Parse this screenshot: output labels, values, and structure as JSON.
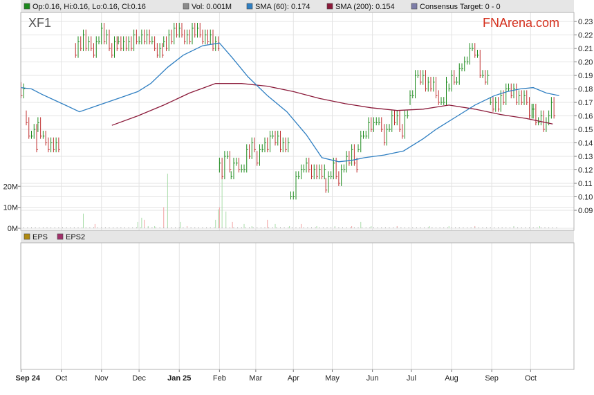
{
  "chart_data": {
    "type": "bar",
    "ticker": "XF1",
    "brand": "FNArena.com",
    "legend_top": [
      {
        "key": "ohlc",
        "text": "Op:0.16, Hi:0.16, Lo:0.16, Cl:0.16",
        "color": "#1d8a1d"
      },
      {
        "key": "vol",
        "text": "Vol: 0.001M",
        "color": "#8c8c8c"
      },
      {
        "key": "sma60",
        "text": "SMA (60): 0.174",
        "color": "#2f7fc2"
      },
      {
        "key": "sma200",
        "text": "SMA (200): 0.154",
        "color": "#8b1a3a"
      },
      {
        "key": "target",
        "text": "Consensus Target: 0 - 0",
        "color": "#7d7da8"
      }
    ],
    "legend_bottom": [
      {
        "key": "eps",
        "text": "EPS",
        "color": "#b08a10"
      },
      {
        "key": "eps2",
        "text": "EPS2",
        "color": "#a0306a"
      }
    ],
    "y_ticks": [
      0.23,
      0.22,
      0.21,
      0.2,
      0.19,
      0.18,
      0.17,
      0.16,
      0.15,
      0.14,
      0.13,
      0.12,
      0.11,
      0.1,
      0.09
    ],
    "ylim": [
      0.09,
      0.23
    ],
    "vol_ticks": [
      "20M",
      "10M",
      "0M"
    ],
    "vol_tick_values": [
      20,
      10,
      0
    ],
    "vol_max": 28,
    "x_ticks": [
      "Sep 24",
      "Oct",
      "Nov",
      "Dec",
      "Jan 25",
      "Feb",
      "Mar",
      "Apr",
      "May",
      "Jun",
      "Jul",
      "Aug",
      "Sep",
      "Oct"
    ],
    "x_tick_days": [
      0,
      31,
      62,
      91,
      122,
      153,
      181,
      210,
      240,
      271,
      301,
      332,
      363,
      393
    ],
    "x_days_total": 420,
    "bold_ticks": [
      "Sep 24",
      "Jan 25"
    ],
    "price_segments": [
      {
        "start": 0,
        "end": 4,
        "prices": [
          0.181,
          0.186,
          0.17,
          0.16
        ]
      },
      {
        "start": 4,
        "end": 13,
        "prices": [
          0.16,
          0.14,
          0.15,
          0.14,
          0.13
        ]
      },
      {
        "start": 13,
        "end": 30,
        "prices": [
          0.15,
          0.14,
          0.14,
          0.135,
          0.135
        ]
      },
      {
        "start": 42,
        "end": 75,
        "prices": [
          0.21,
          0.215,
          0.21,
          0.22,
          0.21,
          0.212
        ]
      },
      {
        "start": 75,
        "end": 110,
        "prices": [
          0.215,
          0.21,
          0.22,
          0.212,
          0.21
        ]
      },
      {
        "start": 110,
        "end": 153,
        "prices": [
          0.213,
          0.22,
          0.218,
          0.22,
          0.22,
          0.215,
          0.21
        ]
      },
      {
        "start": 153,
        "end": 162,
        "prices": [
          0.12,
          0.118,
          0.125,
          0.13,
          0.12
        ]
      },
      {
        "start": 162,
        "end": 182,
        "prices": [
          0.115,
          0.125,
          0.12,
          0.13,
          0.135,
          0.13
        ]
      },
      {
        "start": 182,
        "end": 208,
        "prices": [
          0.13,
          0.14,
          0.135,
          0.145,
          0.14,
          0.135,
          0.132
        ]
      },
      {
        "start": 208,
        "end": 235,
        "prices": [
          0.1,
          0.115,
          0.12,
          0.118,
          0.12,
          0.112
        ]
      },
      {
        "start": 235,
        "end": 260,
        "prices": [
          0.11,
          0.12,
          0.115,
          0.125,
          0.13,
          0.12
        ]
      },
      {
        "start": 260,
        "end": 300,
        "prices": [
          0.135,
          0.15,
          0.155,
          0.145,
          0.16,
          0.15,
          0.165
        ]
      },
      {
        "start": 300,
        "end": 330,
        "prices": [
          0.17,
          0.19,
          0.185,
          0.18,
          0.17,
          0.185
        ]
      },
      {
        "start": 330,
        "end": 362,
        "prices": [
          0.18,
          0.19,
          0.2,
          0.21,
          0.19,
          0.18
        ]
      },
      {
        "start": 362,
        "end": 395,
        "prices": [
          0.17,
          0.165,
          0.175,
          0.18,
          0.17,
          0.168,
          0.165
        ]
      },
      {
        "start": 395,
        "end": 412,
        "prices": [
          0.16,
          0.155,
          0.16,
          0.15,
          0.158,
          0.165,
          0.16
        ]
      }
    ],
    "sma60": {
      "days": [
        0,
        8,
        16,
        25,
        34,
        45,
        60,
        75,
        90,
        100,
        113,
        125,
        140,
        153,
        163,
        175,
        190,
        205,
        220,
        232,
        245,
        255,
        265,
        280,
        295,
        310,
        320,
        335,
        350,
        365,
        375,
        385,
        395,
        405,
        415
      ],
      "values": [
        0.181,
        0.18,
        0.176,
        0.172,
        0.168,
        0.163,
        0.168,
        0.173,
        0.178,
        0.184,
        0.196,
        0.205,
        0.212,
        0.214,
        0.203,
        0.189,
        0.175,
        0.163,
        0.146,
        0.129,
        0.126,
        0.127,
        0.129,
        0.131,
        0.134,
        0.143,
        0.15,
        0.159,
        0.168,
        0.175,
        0.178,
        0.18,
        0.181,
        0.177,
        0.175
      ]
    },
    "sma200": {
      "days": [
        70,
        90,
        110,
        130,
        150,
        153,
        170,
        190,
        210,
        230,
        250,
        270,
        290,
        310,
        330,
        350,
        370,
        390,
        410
      ],
      "values": [
        0.153,
        0.16,
        0.168,
        0.177,
        0.184,
        0.184,
        0.184,
        0.182,
        0.178,
        0.173,
        0.169,
        0.166,
        0.164,
        0.165,
        0.168,
        0.165,
        0.161,
        0.158,
        0.154
      ]
    },
    "volume": [
      {
        "day": 48,
        "value": 7
      },
      {
        "day": 57,
        "value": 2
      },
      {
        "day": 90,
        "value": 3
      },
      {
        "day": 93,
        "value": 5
      },
      {
        "day": 95,
        "value": 4
      },
      {
        "day": 98,
        "value": 1
      },
      {
        "day": 103,
        "value": 1
      },
      {
        "day": 110,
        "value": 10
      },
      {
        "day": 113,
        "value": 26
      },
      {
        "day": 123,
        "value": 3
      },
      {
        "day": 128,
        "value": 1
      },
      {
        "day": 150,
        "value": 4
      },
      {
        "day": 152,
        "value": 9
      },
      {
        "day": 153,
        "value": 10
      },
      {
        "day": 155,
        "value": 28
      },
      {
        "day": 158,
        "value": 8
      },
      {
        "day": 163,
        "value": 3
      },
      {
        "day": 172,
        "value": 2
      },
      {
        "day": 178,
        "value": 1
      },
      {
        "day": 190,
        "value": 4
      },
      {
        "day": 196,
        "value": 2
      },
      {
        "day": 207,
        "value": 1
      },
      {
        "day": 216,
        "value": 2
      },
      {
        "day": 228,
        "value": 1
      },
      {
        "day": 242,
        "value": 1
      },
      {
        "day": 255,
        "value": 1
      },
      {
        "day": 262,
        "value": 3
      },
      {
        "day": 270,
        "value": 1
      },
      {
        "day": 290,
        "value": 1
      },
      {
        "day": 315,
        "value": 1
      },
      {
        "day": 330,
        "value": 1
      },
      {
        "day": 350,
        "value": 1
      },
      {
        "day": 380,
        "value": 1
      },
      {
        "day": 400,
        "value": 1
      }
    ]
  }
}
